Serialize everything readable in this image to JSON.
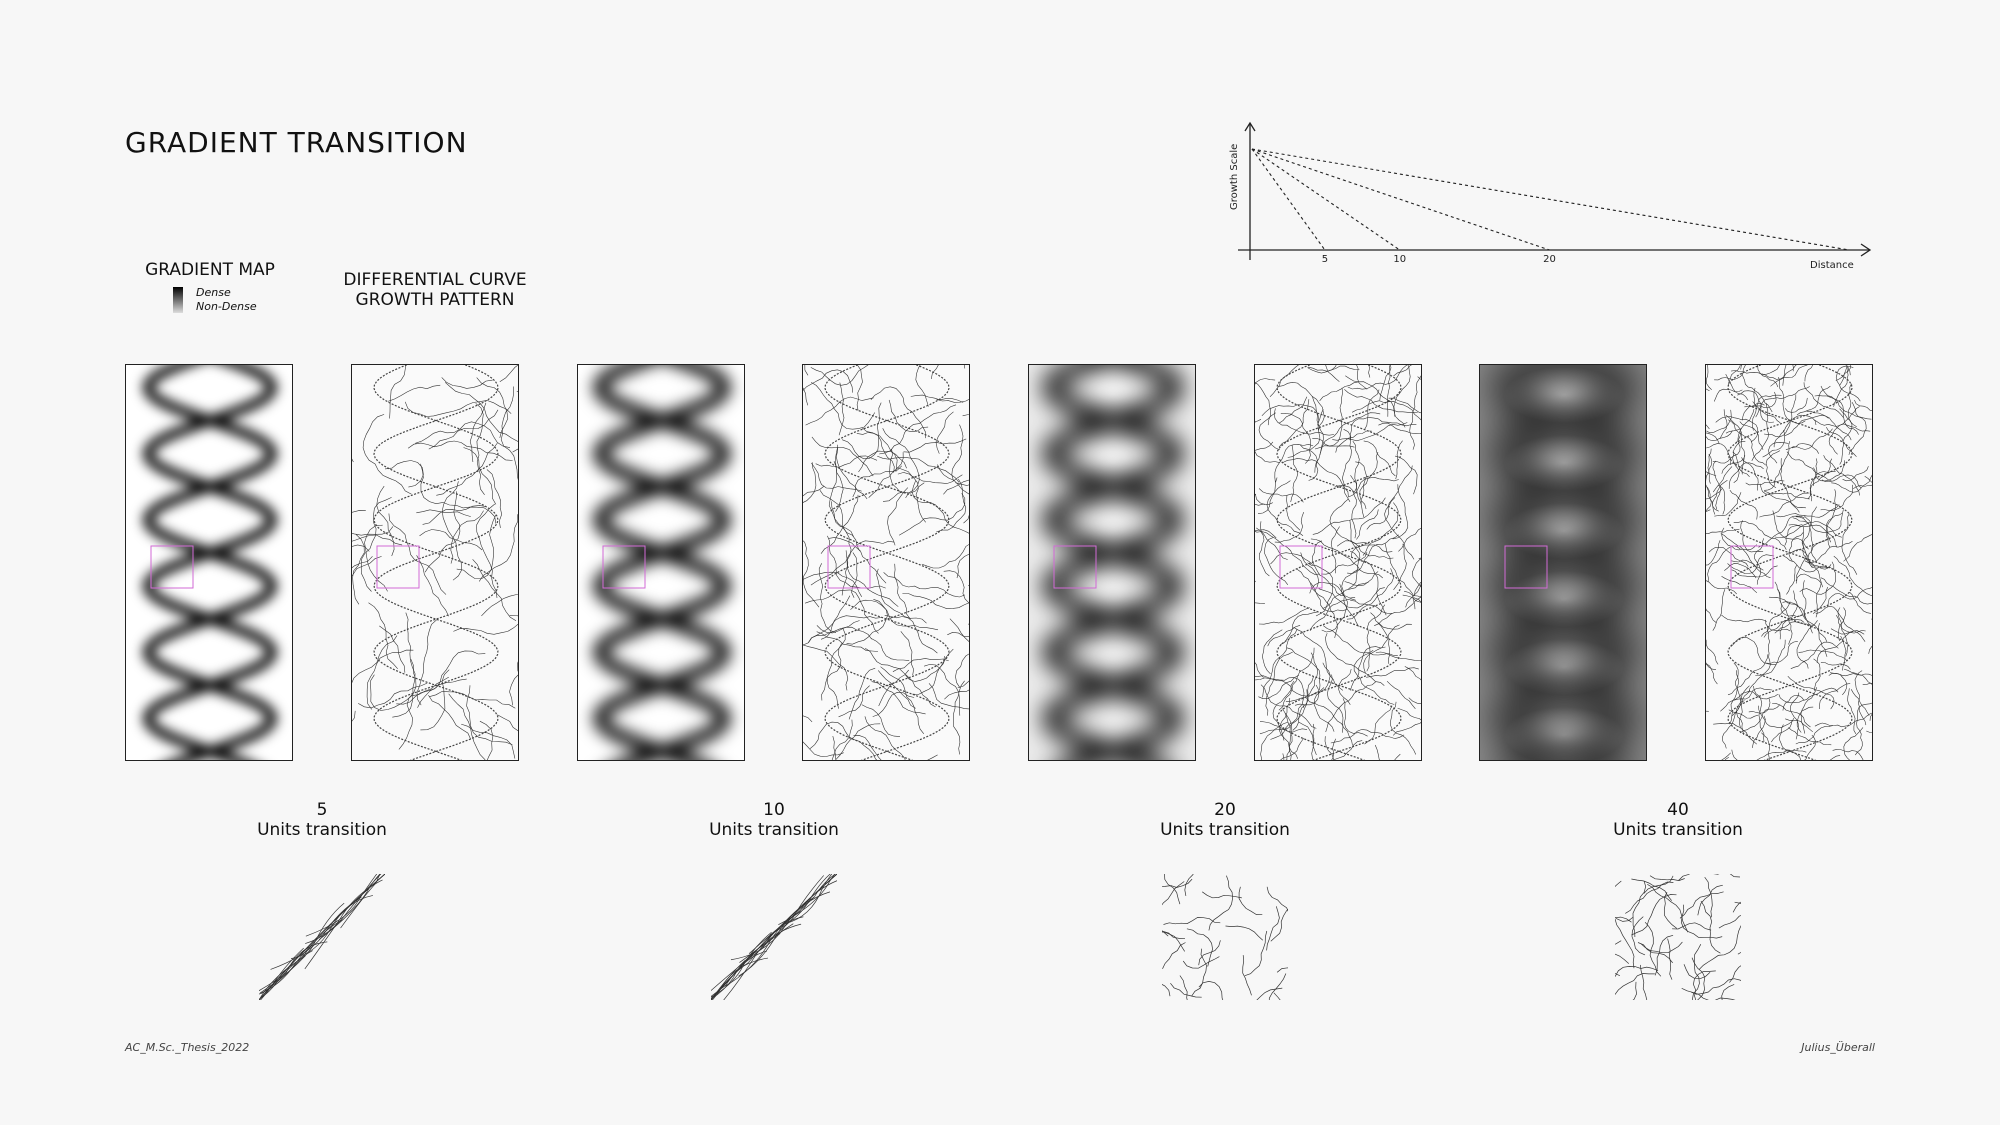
{
  "title": "GRADIENT TRANSITION",
  "headers": {
    "gradient_map": "GRADIENT MAP",
    "curve_line1": "DIFFERENTIAL CURVE",
    "curve_line2": "GROWTH PATTERN"
  },
  "legend": {
    "dense": "Dense",
    "non_dense": "Non-Dense"
  },
  "groups": [
    {
      "value": "5",
      "unit": "Units transition"
    },
    {
      "value": "10",
      "unit": "Units transition"
    },
    {
      "value": "20",
      "unit": "Units transition"
    },
    {
      "value": "40",
      "unit": "Units transition"
    }
  ],
  "chart_data": {
    "type": "line",
    "ylabel": "Growth Scale",
    "xlabel": "Distance",
    "x_ticks": [
      "5",
      "10",
      "20"
    ],
    "series_endpoints": [
      5,
      10,
      20,
      40
    ],
    "line_style": "dashed"
  },
  "footer": {
    "left": "AC_M.Sc._Thesis_2022",
    "right": "Julius_Überall"
  },
  "colors": {
    "highlight": "#d26ad6",
    "ink": "#111111",
    "background": "#f7f7f7"
  }
}
